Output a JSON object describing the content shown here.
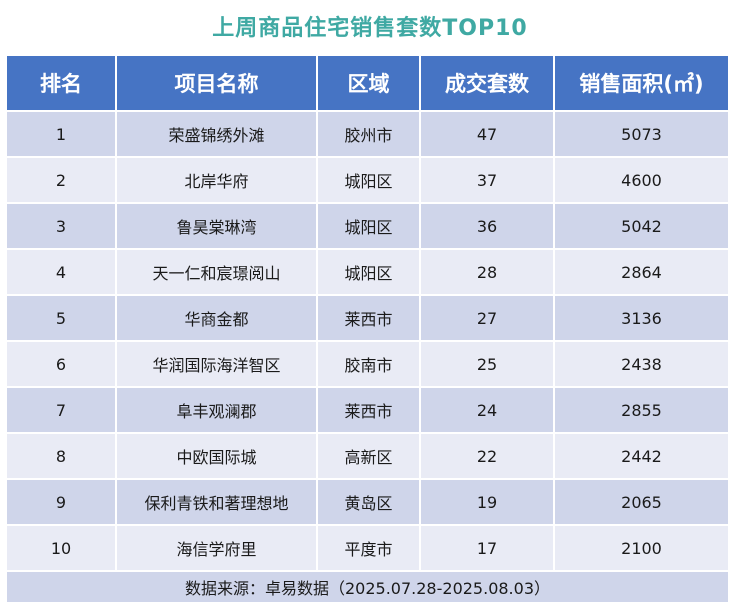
{
  "title": "上周商品住宅销售套数TOP10",
  "columns": [
    "排名",
    "项目名称",
    "区域",
    "成交套数",
    "销售面积(㎡)"
  ],
  "rows": [
    [
      "1",
      "荣盛锦绣外滩",
      "胶州市",
      "47",
      "5073"
    ],
    [
      "2",
      "北岸华府",
      "城阳区",
      "37",
      "4600"
    ],
    [
      "3",
      "鲁昊棠琳湾",
      "城阳区",
      "36",
      "5042"
    ],
    [
      "4",
      "天一仁和宸璟阅山",
      "城阳区",
      "28",
      "2864"
    ],
    [
      "5",
      "华商金都",
      "莱西市",
      "27",
      "3136"
    ],
    [
      "6",
      "华润国际海洋智区",
      "胶南市",
      "25",
      "2438"
    ],
    [
      "7",
      "阜丰观澜郡",
      "莱西市",
      "24",
      "2855"
    ],
    [
      "8",
      "中欧国际城",
      "高新区",
      "22",
      "2442"
    ],
    [
      "9",
      "保利青铁和著理想地",
      "黄岛区",
      "19",
      "2065"
    ],
    [
      "10",
      "海信学府里",
      "平度市",
      "17",
      "2100"
    ]
  ],
  "footer": "数据来源：卓易数据（2025.07.28-2025.08.03）",
  "colors": {
    "title": "#3fa9a3",
    "header_bg": "#4674c4",
    "row_dark": "#cfd5ea",
    "row_light": "#e9ebf5"
  },
  "chart_data": {
    "type": "table",
    "title": "上周商品住宅销售套数TOP10",
    "columns": [
      "排名",
      "项目名称",
      "区域",
      "成交套数",
      "销售面积(㎡)"
    ],
    "rows": [
      [
        1,
        "荣盛锦绣外滩",
        "胶州市",
        47,
        5073
      ],
      [
        2,
        "北岸华府",
        "城阳区",
        37,
        4600
      ],
      [
        3,
        "鲁昊棠琳湾",
        "城阳区",
        36,
        5042
      ],
      [
        4,
        "天一仁和宸璟阅山",
        "城阳区",
        28,
        2864
      ],
      [
        5,
        "华商金都",
        "莱西市",
        27,
        3136
      ],
      [
        6,
        "华润国际海洋智区",
        "胶南市",
        25,
        2438
      ],
      [
        7,
        "阜丰观澜郡",
        "莱西市",
        24,
        2855
      ],
      [
        8,
        "中欧国际城",
        "高新区",
        22,
        2442
      ],
      [
        9,
        "保利青铁和著理想地",
        "黄岛区",
        19,
        2065
      ],
      [
        10,
        "海信学府里",
        "平度市",
        17,
        2100
      ]
    ]
  }
}
